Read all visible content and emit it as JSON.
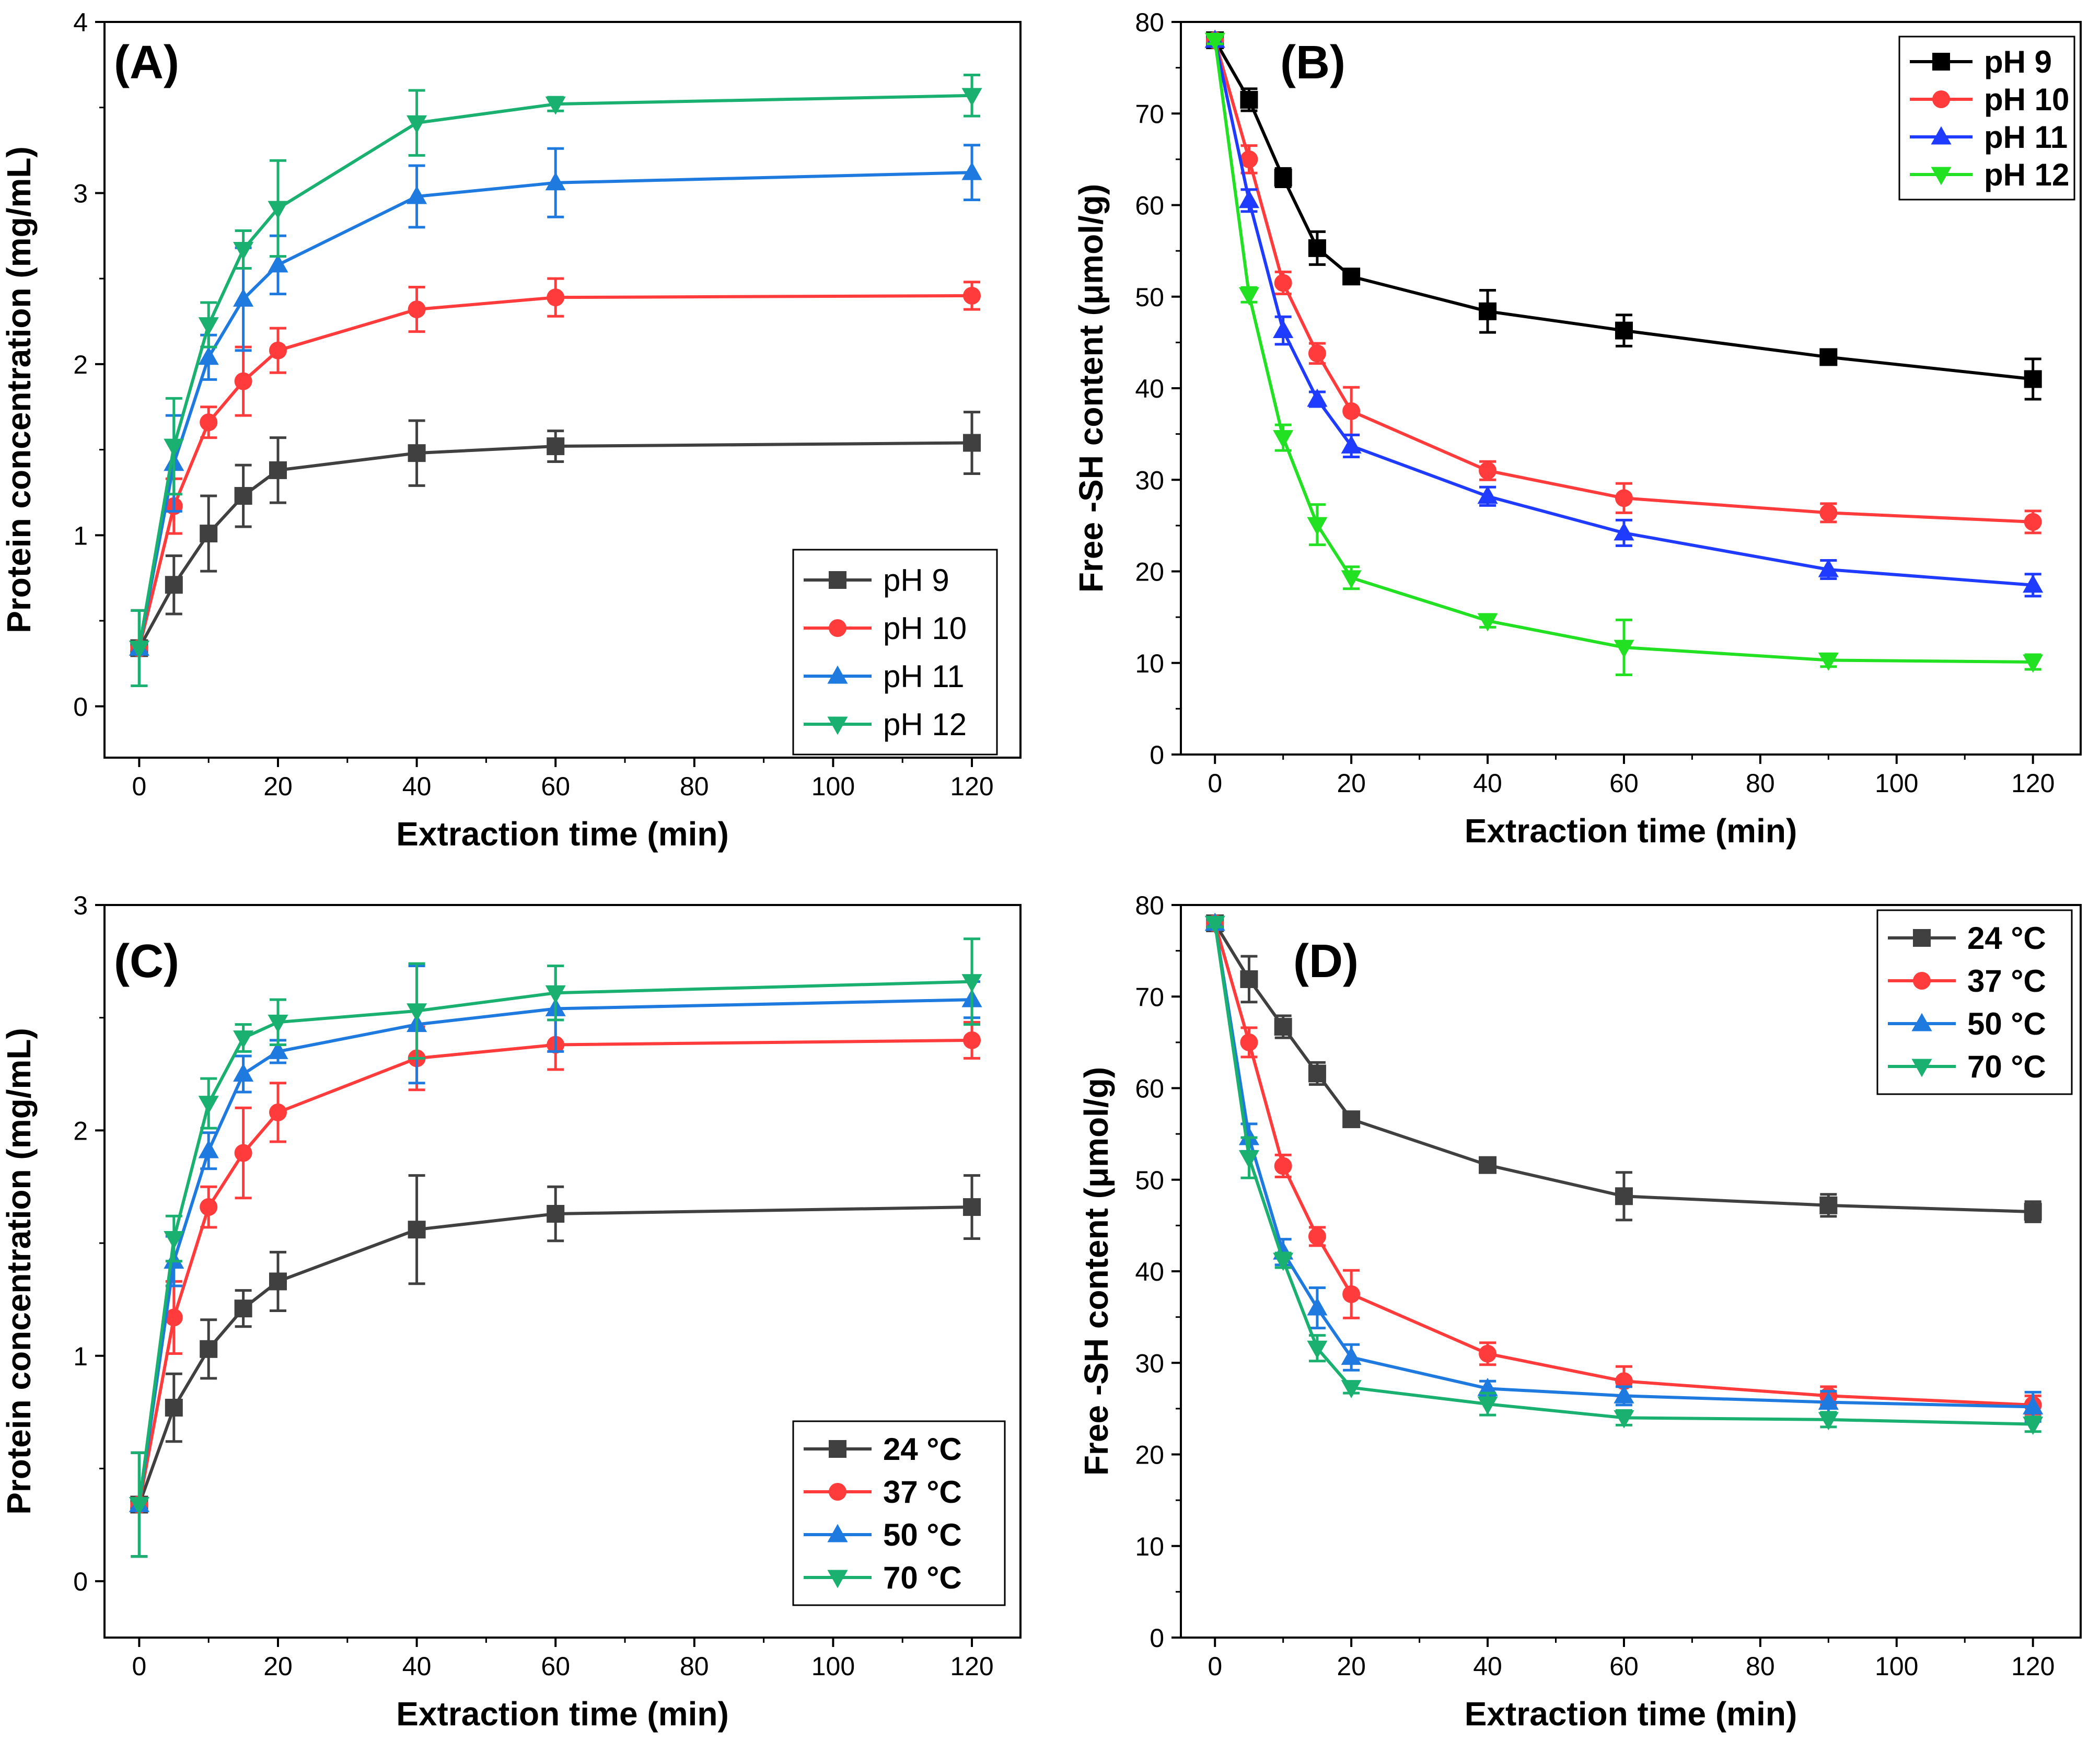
{
  "figure": {
    "series_colors": [
      "#404040",
      "#ff3b3b",
      "#1f7ae0",
      "#19b070"
    ],
    "series_colors_b": [
      "#000000",
      "#ff3b3b",
      "#1f3bff",
      "#22e022"
    ],
    "markers": [
      "square",
      "circle",
      "triangle-up",
      "triangle-down"
    ]
  },
  "chart_data": [
    {
      "id": "A",
      "panel_label": "(A)",
      "type": "line",
      "xlabel": "Extraction time (min)",
      "ylabel": "Protein concentration (mg/mL)",
      "xlim": [
        -5,
        127
      ],
      "ylim": [
        -0.3,
        4
      ],
      "xticks": [
        0,
        20,
        40,
        60,
        80,
        100,
        120
      ],
      "yticks": [
        0,
        1,
        2,
        3,
        4
      ],
      "legend_position": "bottom-right",
      "legend_bold": false,
      "x": [
        0,
        5,
        10,
        15,
        20,
        40,
        60,
        120
      ],
      "series": [
        {
          "name": "pH 9",
          "values": [
            0.34,
            0.71,
            1.01,
            1.23,
            1.38,
            1.48,
            1.52,
            1.54
          ],
          "errors": [
            0.22,
            0.17,
            0.22,
            0.18,
            0.19,
            0.19,
            0.09,
            0.18
          ]
        },
        {
          "name": "pH 10",
          "values": [
            0.34,
            1.17,
            1.66,
            1.9,
            2.08,
            2.32,
            2.39,
            2.4
          ],
          "errors": [
            0.22,
            0.16,
            0.09,
            0.2,
            0.13,
            0.13,
            0.11,
            0.08
          ]
        },
        {
          "name": "pH 11",
          "values": [
            0.34,
            1.42,
            2.04,
            2.38,
            2.58,
            2.98,
            3.06,
            3.12
          ],
          "errors": [
            0.22,
            0.28,
            0.13,
            0.3,
            0.17,
            0.18,
            0.2,
            0.16
          ]
        },
        {
          "name": "pH 12",
          "values": [
            0.34,
            1.52,
            2.23,
            2.67,
            2.91,
            3.41,
            3.52,
            3.57
          ],
          "errors": [
            0.22,
            0.28,
            0.13,
            0.11,
            0.28,
            0.19,
            0.04,
            0.12
          ]
        }
      ]
    },
    {
      "id": "B",
      "panel_label": "(B)",
      "type": "line",
      "xlabel": "Extraction time (min)",
      "ylabel": "Free -SH content (μmol/g)",
      "xlim": [
        -5,
        127
      ],
      "ylim": [
        0,
        80
      ],
      "xticks": [
        0,
        20,
        40,
        60,
        80,
        100,
        120
      ],
      "yticks": [
        0,
        10,
        20,
        30,
        40,
        50,
        60,
        70,
        80
      ],
      "legend_position": "top-right",
      "legend_bold": true,
      "x": [
        0,
        5,
        10,
        15,
        20,
        40,
        60,
        90,
        120
      ],
      "series": [
        {
          "name": "pH 9",
          "values": [
            78,
            71.5,
            63,
            55.3,
            52.2,
            48.4,
            46.3,
            43.4,
            41
          ],
          "errors": [
            0.4,
            1.2,
            1.0,
            1.8,
            0.6,
            2.3,
            1.7,
            0.7,
            2.2
          ]
        },
        {
          "name": "pH 10",
          "values": [
            78,
            65,
            51.5,
            43.8,
            37.5,
            31,
            28,
            26.4,
            25.4
          ],
          "errors": [
            0.4,
            1.5,
            1.2,
            1.1,
            2.6,
            1.0,
            1.6,
            1.0,
            1.2
          ]
        },
        {
          "name": "pH 11",
          "values": [
            78,
            60.5,
            46.3,
            38.8,
            33.7,
            28.2,
            24.2,
            20.2,
            18.5
          ],
          "errors": [
            0.4,
            1.2,
            1.5,
            0.8,
            1.2,
            1.0,
            1.4,
            1.0,
            1.2
          ]
        },
        {
          "name": "pH 12",
          "values": [
            78,
            50.2,
            34.6,
            25.1,
            19.3,
            14.6,
            11.7,
            10.3,
            10.1
          ],
          "errors": [
            0.4,
            0.8,
            1.4,
            2.2,
            1.2,
            0.7,
            3.0,
            0.7,
            0.8
          ]
        }
      ]
    },
    {
      "id": "C",
      "panel_label": "(C)",
      "type": "line",
      "xlabel": "Extraction time (min)",
      "ylabel": "Protein concentration (mg/mL)",
      "xlim": [
        -5,
        127
      ],
      "ylim": [
        -0.25,
        3
      ],
      "xticks": [
        0,
        20,
        40,
        60,
        80,
        100,
        120
      ],
      "yticks": [
        0,
        1,
        2,
        3
      ],
      "legend_position": "bottom-right",
      "legend_bold": true,
      "x": [
        0,
        5,
        10,
        15,
        20,
        40,
        60,
        120
      ],
      "series": [
        {
          "name": "24 °C",
          "values": [
            0.34,
            0.77,
            1.03,
            1.21,
            1.33,
            1.56,
            1.63,
            1.66
          ],
          "errors": [
            0.23,
            0.15,
            0.13,
            0.08,
            0.13,
            0.24,
            0.12,
            0.14
          ]
        },
        {
          "name": "37 °C",
          "values": [
            0.34,
            1.17,
            1.66,
            1.9,
            2.08,
            2.32,
            2.38,
            2.4
          ],
          "errors": [
            0.23,
            0.16,
            0.09,
            0.2,
            0.13,
            0.14,
            0.11,
            0.08
          ]
        },
        {
          "name": "50 °C",
          "values": [
            0.34,
            1.42,
            1.91,
            2.25,
            2.35,
            2.47,
            2.54,
            2.58
          ],
          "errors": [
            0.23,
            0.11,
            0.08,
            0.08,
            0.05,
            0.26,
            0.19,
            0.08
          ]
        },
        {
          "name": "70 °C",
          "values": [
            0.34,
            1.52,
            2.12,
            2.41,
            2.48,
            2.53,
            2.61,
            2.66
          ],
          "errors": [
            0.23,
            0.1,
            0.11,
            0.06,
            0.1,
            0.21,
            0.12,
            0.19
          ]
        }
      ]
    },
    {
      "id": "D",
      "panel_label": "(D)",
      "type": "line",
      "xlabel": "Extraction time (min)",
      "ylabel": "Free -SH content (μmol/g)",
      "xlim": [
        -5,
        127
      ],
      "ylim": [
        0,
        80
      ],
      "xticks": [
        0,
        20,
        40,
        60,
        80,
        100,
        120
      ],
      "yticks": [
        0,
        10,
        20,
        30,
        40,
        50,
        60,
        70,
        80
      ],
      "legend_position": "top-right",
      "legend_bold": true,
      "x": [
        0,
        5,
        10,
        15,
        20,
        40,
        60,
        90,
        120
      ],
      "series": [
        {
          "name": "24 °C",
          "values": [
            78,
            71.9,
            66.7,
            61.6,
            56.6,
            51.6,
            48.2,
            47.2,
            46.5
          ],
          "errors": [
            0.4,
            2.5,
            1.2,
            1.2,
            0.8,
            0.8,
            2.6,
            1.2,
            1.1
          ]
        },
        {
          "name": "37 °C",
          "values": [
            78,
            65,
            51.5,
            43.8,
            37.5,
            31,
            28,
            26.4,
            25.4
          ],
          "errors": [
            0.4,
            1.6,
            1.2,
            1.0,
            2.6,
            1.2,
            1.6,
            1.0,
            1.0
          ]
        },
        {
          "name": "50 °C",
          "values": [
            78,
            54.6,
            42.1,
            36,
            30.6,
            27.2,
            26.4,
            25.7,
            25.2
          ],
          "errors": [
            0.4,
            1.5,
            1.4,
            2.2,
            1.4,
            0.8,
            1.0,
            1.2,
            1.6
          ]
        },
        {
          "name": "70 °C",
          "values": [
            78,
            52.4,
            41.2,
            31.6,
            27.3,
            25.5,
            24,
            23.8,
            23.3
          ],
          "errors": [
            0.4,
            2.2,
            0.8,
            1.4,
            0.6,
            1.2,
            0.8,
            0.8,
            0.8
          ]
        }
      ]
    }
  ]
}
